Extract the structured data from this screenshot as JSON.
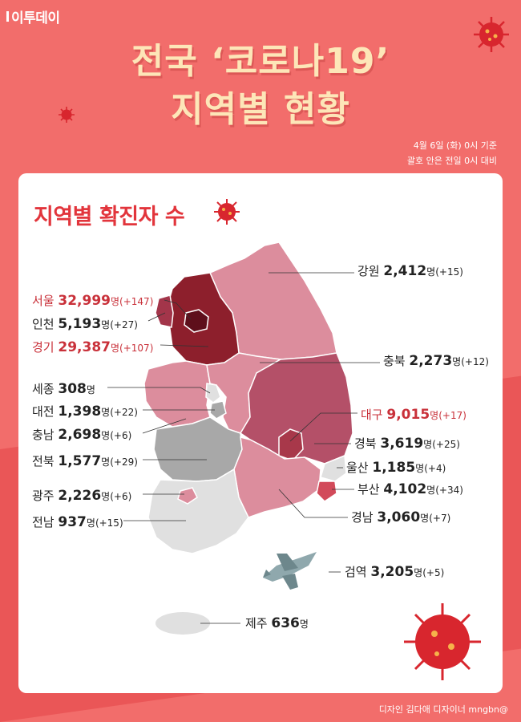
{
  "brand": "이투데이",
  "title_line1": "전국 ‘코로나19’",
  "title_line2": "지역별 현황",
  "as_of_line1": "4월 6일 (화) 0시 기준",
  "as_of_line2": "괄호 안은 전일 0시 대비",
  "section_title": "지역별 확진자 수",
  "unit": "명",
  "regions": {
    "seoul": {
      "name": "서울",
      "count": "32,999",
      "inc": "(+147)"
    },
    "incheon": {
      "name": "인천",
      "count": "5,193",
      "inc": "(+27)"
    },
    "gyeonggi": {
      "name": "경기",
      "count": "29,387",
      "inc": "(+107)"
    },
    "sejong": {
      "name": "세종",
      "count": "308",
      "inc": ""
    },
    "daejeon": {
      "name": "대전",
      "count": "1,398",
      "inc": "(+22)"
    },
    "chungnam": {
      "name": "충남",
      "count": "2,698",
      "inc": "(+6)"
    },
    "jeonbuk": {
      "name": "전북",
      "count": "1,577",
      "inc": "(+29)"
    },
    "gwangju": {
      "name": "광주",
      "count": "2,226",
      "inc": "(+6)"
    },
    "jeonnam": {
      "name": "전남",
      "count": "937",
      "inc": "(+15)"
    },
    "gangwon": {
      "name": "강원",
      "count": "2,412",
      "inc": "(+15)"
    },
    "chungbuk": {
      "name": "충북",
      "count": "2,273",
      "inc": "(+12)"
    },
    "daegu": {
      "name": "대구",
      "count": "9,015",
      "inc": "(+17)"
    },
    "gyeongbuk": {
      "name": "경북",
      "count": "3,619",
      "inc": "(+25)"
    },
    "ulsan": {
      "name": "울산",
      "count": "1,185",
      "inc": "(+4)"
    },
    "busan": {
      "name": "부산",
      "count": "4,102",
      "inc": "(+34)"
    },
    "gyeongnam": {
      "name": "경남",
      "count": "3,060",
      "inc": "(+7)"
    },
    "quarantine": {
      "name": "검역",
      "count": "3,205",
      "inc": "(+5)"
    },
    "jeju": {
      "name": "제주",
      "count": "636",
      "inc": ""
    }
  },
  "colors": {
    "background": "#f26d6b",
    "title": "#fde6b8",
    "highlight_text": "#c9313a",
    "seoul": "#5e0f1b",
    "gyeonggi": "#8d1f2c",
    "daegu": "#a8384a",
    "gyeongbuk": "#b45068",
    "light_pink": "#dc8d9d",
    "gray": "#a8a8a8",
    "light_gray": "#e0e0e0"
  },
  "credit": "디자인 김다애 디자이너 mngbn@"
}
